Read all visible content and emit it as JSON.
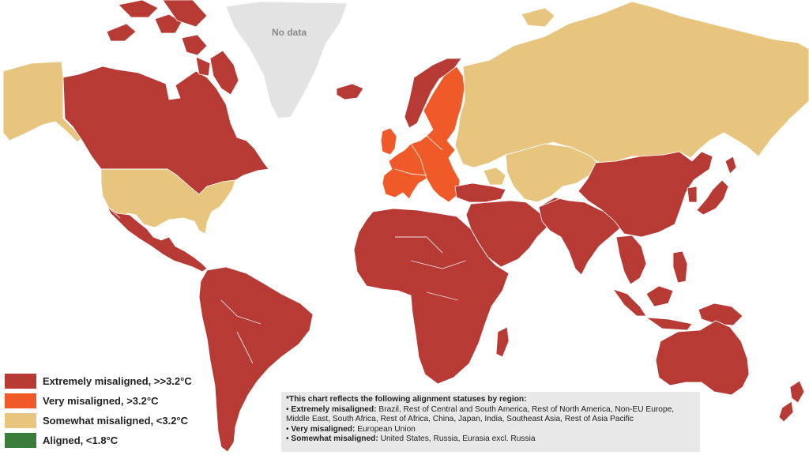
{
  "colors": {
    "extremely": "#b83a35",
    "very": "#f05a28",
    "somewhat": "#e8c57f",
    "aligned": "#3a7d3a",
    "no_data": "#e3e3e3",
    "background": "#ffffff",
    "borders": "#ffffff"
  },
  "map": {
    "no_data_label": "No data",
    "regions": {
      "greenland": "no_data",
      "alaska": "somewhat",
      "canada": "extremely",
      "united_states": "somewhat",
      "mexico_central_america": "extremely",
      "south_america": "extremely",
      "iceland": "extremely",
      "norway": "extremely",
      "european_union": "very",
      "russia": "somewhat",
      "central_asia": "somewhat",
      "caucasus": "somewhat",
      "turkey": "extremely",
      "middle_east": "extremely",
      "africa": "extremely",
      "madagascar": "extremely",
      "south_asia": "extremely",
      "china_mongolia": "extremely",
      "japan_korea": "extremely",
      "southeast_asia": "extremely",
      "australia": "extremely",
      "new_zealand": "extremely"
    }
  },
  "legend": {
    "items": [
      {
        "label": "Extremely misaligned, >>3.2°C",
        "color": "#b83a35"
      },
      {
        "label": "Very misaligned, >3.2°C",
        "color": "#f05a28"
      },
      {
        "label": "Somewhat misaligned, <3.2°C",
        "color": "#e8c57f"
      },
      {
        "label": "Aligned, <1.8°C",
        "color": "#3a7d3a"
      }
    ]
  },
  "note": {
    "title": "*This chart reflects the following alignment statuses by region:",
    "rows": [
      {
        "key": "Extremely misaligned:",
        "value": "Brazil, Rest of Central and South America, Rest of North America, Non-EU Europe, Middle East, South Africa, Rest of Africa, China, Japan, India, Southeast Asia, Rest of Asia Pacific"
      },
      {
        "key": "Very misaligned:",
        "value": "European Union"
      },
      {
        "key": "Somewhat misaligned:",
        "value": "United States, Russia, Eurasia excl. Russia"
      }
    ]
  }
}
